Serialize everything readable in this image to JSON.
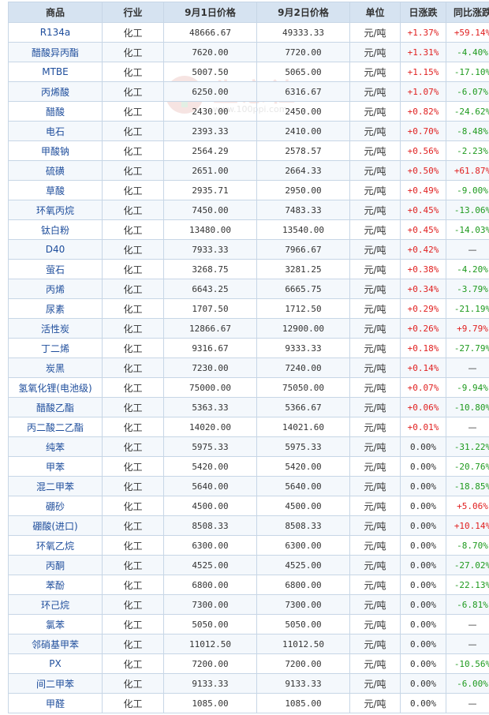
{
  "headers": [
    "商品",
    "行业",
    "9月1日价格",
    "9月2日价格",
    "单位",
    "日涨跌",
    "同比涨跌"
  ],
  "watermark": {
    "text": "生意社",
    "url": "www.100ppi.com"
  },
  "colors": {
    "header_bg": "#d6e3f1",
    "border": "#c7d6e6",
    "name": "#1f4e9c",
    "up": "#e02020",
    "down": "#1e9a1e"
  },
  "rows": [
    {
      "name": "R134a",
      "industry": "化工",
      "price1": "48666.67",
      "price2": "49333.33",
      "unit": "元/吨",
      "day": "+1.37%",
      "yoy": "+59.14%"
    },
    {
      "name": "醋酸异丙酯",
      "industry": "化工",
      "price1": "7620.00",
      "price2": "7720.00",
      "unit": "元/吨",
      "day": "+1.31%",
      "yoy": "-4.40%"
    },
    {
      "name": "MTBE",
      "industry": "化工",
      "price1": "5007.50",
      "price2": "5065.00",
      "unit": "元/吨",
      "day": "+1.15%",
      "yoy": "-17.10%"
    },
    {
      "name": "丙烯酸",
      "industry": "化工",
      "price1": "6250.00",
      "price2": "6316.67",
      "unit": "元/吨",
      "day": "+1.07%",
      "yoy": "-6.07%"
    },
    {
      "name": "醋酸",
      "industry": "化工",
      "price1": "2430.00",
      "price2": "2450.00",
      "unit": "元/吨",
      "day": "+0.82%",
      "yoy": "-24.62%"
    },
    {
      "name": "电石",
      "industry": "化工",
      "price1": "2393.33",
      "price2": "2410.00",
      "unit": "元/吨",
      "day": "+0.70%",
      "yoy": "-8.48%"
    },
    {
      "name": "甲酸钠",
      "industry": "化工",
      "price1": "2564.29",
      "price2": "2578.57",
      "unit": "元/吨",
      "day": "+0.56%",
      "yoy": "-2.23%"
    },
    {
      "name": "硫磺",
      "industry": "化工",
      "price1": "2651.00",
      "price2": "2664.33",
      "unit": "元/吨",
      "day": "+0.50%",
      "yoy": "+61.87%"
    },
    {
      "name": "草酸",
      "industry": "化工",
      "price1": "2935.71",
      "price2": "2950.00",
      "unit": "元/吨",
      "day": "+0.49%",
      "yoy": "-9.00%"
    },
    {
      "name": "环氧丙烷",
      "industry": "化工",
      "price1": "7450.00",
      "price2": "7483.33",
      "unit": "元/吨",
      "day": "+0.45%",
      "yoy": "-13.06%"
    },
    {
      "name": "钛白粉",
      "industry": "化工",
      "price1": "13480.00",
      "price2": "13540.00",
      "unit": "元/吨",
      "day": "+0.45%",
      "yoy": "-14.03%"
    },
    {
      "name": "D40",
      "industry": "化工",
      "price1": "7933.33",
      "price2": "7966.67",
      "unit": "元/吨",
      "day": "+0.42%",
      "yoy": "—"
    },
    {
      "name": "萤石",
      "industry": "化工",
      "price1": "3268.75",
      "price2": "3281.25",
      "unit": "元/吨",
      "day": "+0.38%",
      "yoy": "-4.20%"
    },
    {
      "name": "丙烯",
      "industry": "化工",
      "price1": "6643.25",
      "price2": "6665.75",
      "unit": "元/吨",
      "day": "+0.34%",
      "yoy": "-3.79%"
    },
    {
      "name": "尿素",
      "industry": "化工",
      "price1": "1707.50",
      "price2": "1712.50",
      "unit": "元/吨",
      "day": "+0.29%",
      "yoy": "-21.19%"
    },
    {
      "name": "活性炭",
      "industry": "化工",
      "price1": "12866.67",
      "price2": "12900.00",
      "unit": "元/吨",
      "day": "+0.26%",
      "yoy": "+9.79%"
    },
    {
      "name": "丁二烯",
      "industry": "化工",
      "price1": "9316.67",
      "price2": "9333.33",
      "unit": "元/吨",
      "day": "+0.18%",
      "yoy": "-27.79%"
    },
    {
      "name": "炭黑",
      "industry": "化工",
      "price1": "7230.00",
      "price2": "7240.00",
      "unit": "元/吨",
      "day": "+0.14%",
      "yoy": "—"
    },
    {
      "name": "氢氧化锂(电池级)",
      "industry": "化工",
      "price1": "75000.00",
      "price2": "75050.00",
      "unit": "元/吨",
      "day": "+0.07%",
      "yoy": "-9.94%"
    },
    {
      "name": "醋酸乙酯",
      "industry": "化工",
      "price1": "5363.33",
      "price2": "5366.67",
      "unit": "元/吨",
      "day": "+0.06%",
      "yoy": "-10.80%"
    },
    {
      "name": "丙二酸二乙酯",
      "industry": "化工",
      "price1": "14020.00",
      "price2": "14021.60",
      "unit": "元/吨",
      "day": "+0.01%",
      "yoy": "—"
    },
    {
      "name": "纯苯",
      "industry": "化工",
      "price1": "5975.33",
      "price2": "5975.33",
      "unit": "元/吨",
      "day": "0.00%",
      "yoy": "-31.22%"
    },
    {
      "name": "甲苯",
      "industry": "化工",
      "price1": "5420.00",
      "price2": "5420.00",
      "unit": "元/吨",
      "day": "0.00%",
      "yoy": "-20.76%"
    },
    {
      "name": "混二甲苯",
      "industry": "化工",
      "price1": "5640.00",
      "price2": "5640.00",
      "unit": "元/吨",
      "day": "0.00%",
      "yoy": "-18.85%"
    },
    {
      "name": "硼砂",
      "industry": "化工",
      "price1": "4500.00",
      "price2": "4500.00",
      "unit": "元/吨",
      "day": "0.00%",
      "yoy": "+5.06%"
    },
    {
      "name": "硼酸(进口)",
      "industry": "化工",
      "price1": "8508.33",
      "price2": "8508.33",
      "unit": "元/吨",
      "day": "0.00%",
      "yoy": "+10.14%"
    },
    {
      "name": "环氧乙烷",
      "industry": "化工",
      "price1": "6300.00",
      "price2": "6300.00",
      "unit": "元/吨",
      "day": "0.00%",
      "yoy": "-8.70%"
    },
    {
      "name": "丙酮",
      "industry": "化工",
      "price1": "4525.00",
      "price2": "4525.00",
      "unit": "元/吨",
      "day": "0.00%",
      "yoy": "-27.02%"
    },
    {
      "name": "苯酚",
      "industry": "化工",
      "price1": "6800.00",
      "price2": "6800.00",
      "unit": "元/吨",
      "day": "0.00%",
      "yoy": "-22.13%"
    },
    {
      "name": "环己烷",
      "industry": "化工",
      "price1": "7300.00",
      "price2": "7300.00",
      "unit": "元/吨",
      "day": "0.00%",
      "yoy": "-6.81%"
    },
    {
      "name": "氯苯",
      "industry": "化工",
      "price1": "5050.00",
      "price2": "5050.00",
      "unit": "元/吨",
      "day": "0.00%",
      "yoy": "—"
    },
    {
      "name": "邻硝基甲苯",
      "industry": "化工",
      "price1": "11012.50",
      "price2": "11012.50",
      "unit": "元/吨",
      "day": "0.00%",
      "yoy": "—"
    },
    {
      "name": "PX",
      "industry": "化工",
      "price1": "7200.00",
      "price2": "7200.00",
      "unit": "元/吨",
      "day": "0.00%",
      "yoy": "-10.56%"
    },
    {
      "name": "间二甲苯",
      "industry": "化工",
      "price1": "9133.33",
      "price2": "9133.33",
      "unit": "元/吨",
      "day": "0.00%",
      "yoy": "-6.00%"
    },
    {
      "name": "甲醛",
      "industry": "化工",
      "price1": "1085.00",
      "price2": "1085.00",
      "unit": "元/吨",
      "day": "0.00%",
      "yoy": "—"
    }
  ]
}
